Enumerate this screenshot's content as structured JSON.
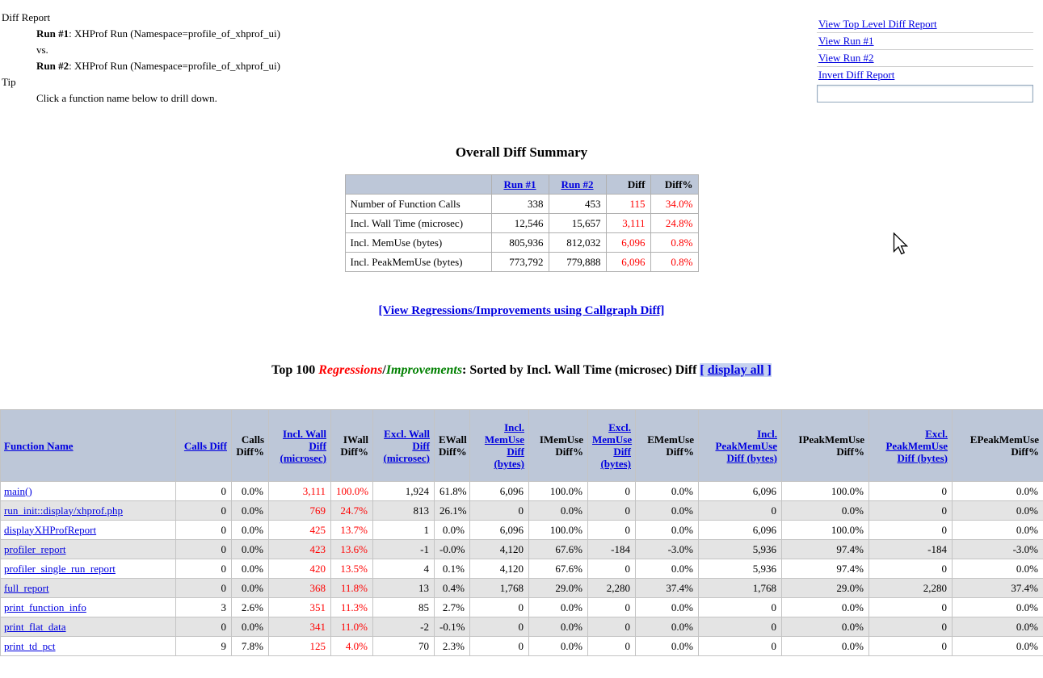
{
  "colors": {
    "link_blue": "#0000e0",
    "diff_red": "#ff0000",
    "improvement_green": "#008000",
    "table_header_bg": "#bdc7d8",
    "row_alt_bg": "#e4e4e4",
    "display_all_highlight_bg": "#c6d2ef"
  },
  "header": {
    "title": "Diff Report",
    "run1_label": "Run #1",
    "run1_rest": ": XHProf Run (Namespace=profile_of_xhprof_ui)",
    "vs": "vs.",
    "run2_label": "Run #2",
    "run2_rest": ": XHProf Run (Namespace=profile_of_xhprof_ui)",
    "tip_title": "Tip",
    "tip_text": "Click a function name below to drill down."
  },
  "nav": {
    "links": [
      {
        "label": "View Top Level Diff Report"
      },
      {
        "label": "View Run #1"
      },
      {
        "label": "View Run #2"
      },
      {
        "label": "Invert Diff Report"
      }
    ],
    "input_value": ""
  },
  "summary": {
    "title": "Overall Diff Summary",
    "columns": [
      "",
      "Run #1",
      "Run #2",
      "Diff",
      "Diff%"
    ],
    "link_columns": [
      1,
      2
    ],
    "red_columns": [
      3,
      4
    ],
    "rows": [
      [
        "Number of Function Calls",
        "338",
        "453",
        "115",
        "34.0%"
      ],
      [
        "Incl. Wall Time (microsec)",
        "12,546",
        "15,657",
        "3,111",
        "24.8%"
      ],
      [
        "Incl. MemUse (bytes)",
        "805,936",
        "812,032",
        "6,096",
        "0.8%"
      ],
      [
        "Incl. PeakMemUse (bytes)",
        "773,792",
        "779,888",
        "6,096",
        "0.8%"
      ]
    ]
  },
  "callgraph": {
    "label": "[View Regressions/Improvements using Callgraph Diff]"
  },
  "top100": {
    "prefix": "Top 100 ",
    "regressions": "Regressions",
    "slash": "/",
    "improvements": "Improvements",
    "middle": ": Sorted by Incl. Wall Time (microsec) Diff ",
    "bracket_left": "[ ",
    "display_all": "display all",
    "bracket_right": " ]"
  },
  "functions_table": {
    "red_columns": [
      3,
      4
    ],
    "columns": [
      {
        "label": "Function Name",
        "sortable": true
      },
      {
        "label": "Calls Diff",
        "sortable": true
      },
      {
        "label": "Calls Diff%",
        "sortable": false
      },
      {
        "label": "Incl. Wall Diff (microsec)",
        "sortable": true
      },
      {
        "label": "IWall Diff%",
        "sortable": false
      },
      {
        "label": "Excl. Wall Diff (microsec)",
        "sortable": true
      },
      {
        "label": "EWall Diff%",
        "sortable": false
      },
      {
        "label": "Incl. MemUse Diff (bytes)",
        "sortable": true
      },
      {
        "label": "IMemUse Diff%",
        "sortable": false
      },
      {
        "label": "Excl. MemUse Diff (bytes)",
        "sortable": true
      },
      {
        "label": "EMemUse Diff%",
        "sortable": false
      },
      {
        "label": "Incl. PeakMemUse Diff (bytes)",
        "sortable": true
      },
      {
        "label": "IPeakMemUse Diff%",
        "sortable": false
      },
      {
        "label": "Excl. PeakMemUse Diff (bytes)",
        "sortable": true
      },
      {
        "label": "EPeakMemUse Diff%",
        "sortable": false
      }
    ],
    "rows": [
      [
        "main()",
        "0",
        "0.0%",
        "3,111",
        "100.0%",
        "1,924",
        "61.8%",
        "6,096",
        "100.0%",
        "0",
        "0.0%",
        "6,096",
        "100.0%",
        "0",
        "0.0%"
      ],
      [
        "run_init::display/xhprof.php",
        "0",
        "0.0%",
        "769",
        "24.7%",
        "813",
        "26.1%",
        "0",
        "0.0%",
        "0",
        "0.0%",
        "0",
        "0.0%",
        "0",
        "0.0%"
      ],
      [
        "displayXHProfReport",
        "0",
        "0.0%",
        "425",
        "13.7%",
        "1",
        "0.0%",
        "6,096",
        "100.0%",
        "0",
        "0.0%",
        "6,096",
        "100.0%",
        "0",
        "0.0%"
      ],
      [
        "profiler_report",
        "0",
        "0.0%",
        "423",
        "13.6%",
        "-1",
        "-0.0%",
        "4,120",
        "67.6%",
        "-184",
        "-3.0%",
        "5,936",
        "97.4%",
        "-184",
        "-3.0%"
      ],
      [
        "profiler_single_run_report",
        "0",
        "0.0%",
        "420",
        "13.5%",
        "4",
        "0.1%",
        "4,120",
        "67.6%",
        "0",
        "0.0%",
        "5,936",
        "97.4%",
        "0",
        "0.0%"
      ],
      [
        "full_report",
        "0",
        "0.0%",
        "368",
        "11.8%",
        "13",
        "0.4%",
        "1,768",
        "29.0%",
        "2,280",
        "37.4%",
        "1,768",
        "29.0%",
        "2,280",
        "37.4%"
      ],
      [
        "print_function_info",
        "3",
        "2.6%",
        "351",
        "11.3%",
        "85",
        "2.7%",
        "0",
        "0.0%",
        "0",
        "0.0%",
        "0",
        "0.0%",
        "0",
        "0.0%"
      ],
      [
        "print_flat_data",
        "0",
        "0.0%",
        "341",
        "11.0%",
        "-2",
        "-0.1%",
        "0",
        "0.0%",
        "0",
        "0.0%",
        "0",
        "0.0%",
        "0",
        "0.0%"
      ],
      [
        "print_td_pct",
        "9",
        "7.8%",
        "125",
        "4.0%",
        "70",
        "2.3%",
        "0",
        "0.0%",
        "0",
        "0.0%",
        "0",
        "0.0%",
        "0",
        "0.0%"
      ]
    ]
  }
}
